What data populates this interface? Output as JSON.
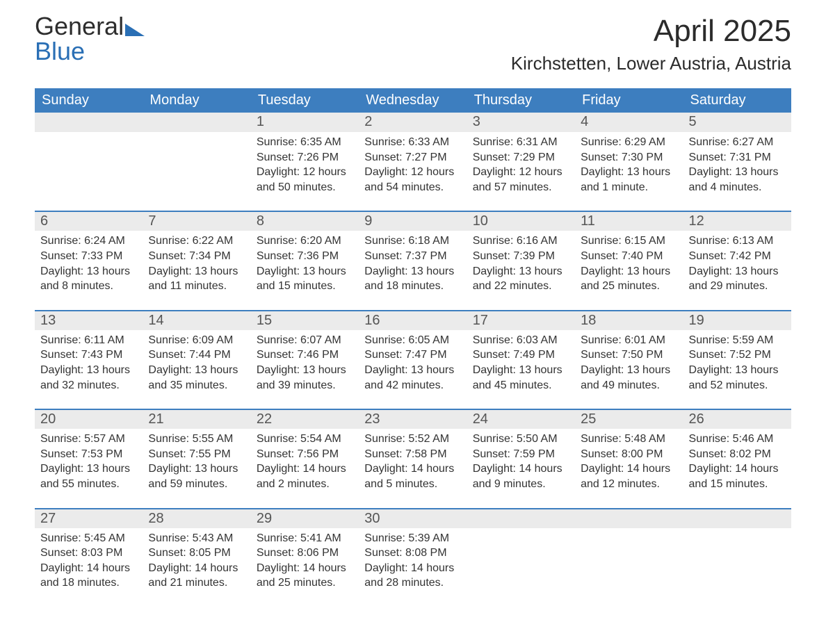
{
  "logo": {
    "line1": "General",
    "line2": "Blue"
  },
  "title": "April 2025",
  "location": "Kirchstetten, Lower Austria, Austria",
  "colors": {
    "header_bg": "#3d7ebf",
    "header_text": "#ffffff",
    "daynum_bg": "#ebebeb",
    "daynum_text": "#555555",
    "body_text": "#333333",
    "logo_gray": "#2d2d2d",
    "logo_blue": "#2a6fb5",
    "page_bg": "#ffffff"
  },
  "day_headers": [
    "Sunday",
    "Monday",
    "Tuesday",
    "Wednesday",
    "Thursday",
    "Friday",
    "Saturday"
  ],
  "weeks": [
    [
      {
        "n": "",
        "sunrise": "",
        "sunset": "",
        "daylight": ""
      },
      {
        "n": "",
        "sunrise": "",
        "sunset": "",
        "daylight": ""
      },
      {
        "n": "1",
        "sunrise": "Sunrise: 6:35 AM",
        "sunset": "Sunset: 7:26 PM",
        "daylight": "Daylight: 12 hours and 50 minutes."
      },
      {
        "n": "2",
        "sunrise": "Sunrise: 6:33 AM",
        "sunset": "Sunset: 7:27 PM",
        "daylight": "Daylight: 12 hours and 54 minutes."
      },
      {
        "n": "3",
        "sunrise": "Sunrise: 6:31 AM",
        "sunset": "Sunset: 7:29 PM",
        "daylight": "Daylight: 12 hours and 57 minutes."
      },
      {
        "n": "4",
        "sunrise": "Sunrise: 6:29 AM",
        "sunset": "Sunset: 7:30 PM",
        "daylight": "Daylight: 13 hours and 1 minute."
      },
      {
        "n": "5",
        "sunrise": "Sunrise: 6:27 AM",
        "sunset": "Sunset: 7:31 PM",
        "daylight": "Daylight: 13 hours and 4 minutes."
      }
    ],
    [
      {
        "n": "6",
        "sunrise": "Sunrise: 6:24 AM",
        "sunset": "Sunset: 7:33 PM",
        "daylight": "Daylight: 13 hours and 8 minutes."
      },
      {
        "n": "7",
        "sunrise": "Sunrise: 6:22 AM",
        "sunset": "Sunset: 7:34 PM",
        "daylight": "Daylight: 13 hours and 11 minutes."
      },
      {
        "n": "8",
        "sunrise": "Sunrise: 6:20 AM",
        "sunset": "Sunset: 7:36 PM",
        "daylight": "Daylight: 13 hours and 15 minutes."
      },
      {
        "n": "9",
        "sunrise": "Sunrise: 6:18 AM",
        "sunset": "Sunset: 7:37 PM",
        "daylight": "Daylight: 13 hours and 18 minutes."
      },
      {
        "n": "10",
        "sunrise": "Sunrise: 6:16 AM",
        "sunset": "Sunset: 7:39 PM",
        "daylight": "Daylight: 13 hours and 22 minutes."
      },
      {
        "n": "11",
        "sunrise": "Sunrise: 6:15 AM",
        "sunset": "Sunset: 7:40 PM",
        "daylight": "Daylight: 13 hours and 25 minutes."
      },
      {
        "n": "12",
        "sunrise": "Sunrise: 6:13 AM",
        "sunset": "Sunset: 7:42 PM",
        "daylight": "Daylight: 13 hours and 29 minutes."
      }
    ],
    [
      {
        "n": "13",
        "sunrise": "Sunrise: 6:11 AM",
        "sunset": "Sunset: 7:43 PM",
        "daylight": "Daylight: 13 hours and 32 minutes."
      },
      {
        "n": "14",
        "sunrise": "Sunrise: 6:09 AM",
        "sunset": "Sunset: 7:44 PM",
        "daylight": "Daylight: 13 hours and 35 minutes."
      },
      {
        "n": "15",
        "sunrise": "Sunrise: 6:07 AM",
        "sunset": "Sunset: 7:46 PM",
        "daylight": "Daylight: 13 hours and 39 minutes."
      },
      {
        "n": "16",
        "sunrise": "Sunrise: 6:05 AM",
        "sunset": "Sunset: 7:47 PM",
        "daylight": "Daylight: 13 hours and 42 minutes."
      },
      {
        "n": "17",
        "sunrise": "Sunrise: 6:03 AM",
        "sunset": "Sunset: 7:49 PM",
        "daylight": "Daylight: 13 hours and 45 minutes."
      },
      {
        "n": "18",
        "sunrise": "Sunrise: 6:01 AM",
        "sunset": "Sunset: 7:50 PM",
        "daylight": "Daylight: 13 hours and 49 minutes."
      },
      {
        "n": "19",
        "sunrise": "Sunrise: 5:59 AM",
        "sunset": "Sunset: 7:52 PM",
        "daylight": "Daylight: 13 hours and 52 minutes."
      }
    ],
    [
      {
        "n": "20",
        "sunrise": "Sunrise: 5:57 AM",
        "sunset": "Sunset: 7:53 PM",
        "daylight": "Daylight: 13 hours and 55 minutes."
      },
      {
        "n": "21",
        "sunrise": "Sunrise: 5:55 AM",
        "sunset": "Sunset: 7:55 PM",
        "daylight": "Daylight: 13 hours and 59 minutes."
      },
      {
        "n": "22",
        "sunrise": "Sunrise: 5:54 AM",
        "sunset": "Sunset: 7:56 PM",
        "daylight": "Daylight: 14 hours and 2 minutes."
      },
      {
        "n": "23",
        "sunrise": "Sunrise: 5:52 AM",
        "sunset": "Sunset: 7:58 PM",
        "daylight": "Daylight: 14 hours and 5 minutes."
      },
      {
        "n": "24",
        "sunrise": "Sunrise: 5:50 AM",
        "sunset": "Sunset: 7:59 PM",
        "daylight": "Daylight: 14 hours and 9 minutes."
      },
      {
        "n": "25",
        "sunrise": "Sunrise: 5:48 AM",
        "sunset": "Sunset: 8:00 PM",
        "daylight": "Daylight: 14 hours and 12 minutes."
      },
      {
        "n": "26",
        "sunrise": "Sunrise: 5:46 AM",
        "sunset": "Sunset: 8:02 PM",
        "daylight": "Daylight: 14 hours and 15 minutes."
      }
    ],
    [
      {
        "n": "27",
        "sunrise": "Sunrise: 5:45 AM",
        "sunset": "Sunset: 8:03 PM",
        "daylight": "Daylight: 14 hours and 18 minutes."
      },
      {
        "n": "28",
        "sunrise": "Sunrise: 5:43 AM",
        "sunset": "Sunset: 8:05 PM",
        "daylight": "Daylight: 14 hours and 21 minutes."
      },
      {
        "n": "29",
        "sunrise": "Sunrise: 5:41 AM",
        "sunset": "Sunset: 8:06 PM",
        "daylight": "Daylight: 14 hours and 25 minutes."
      },
      {
        "n": "30",
        "sunrise": "Sunrise: 5:39 AM",
        "sunset": "Sunset: 8:08 PM",
        "daylight": "Daylight: 14 hours and 28 minutes."
      },
      {
        "n": "",
        "sunrise": "",
        "sunset": "",
        "daylight": ""
      },
      {
        "n": "",
        "sunrise": "",
        "sunset": "",
        "daylight": ""
      },
      {
        "n": "",
        "sunrise": "",
        "sunset": "",
        "daylight": ""
      }
    ]
  ]
}
